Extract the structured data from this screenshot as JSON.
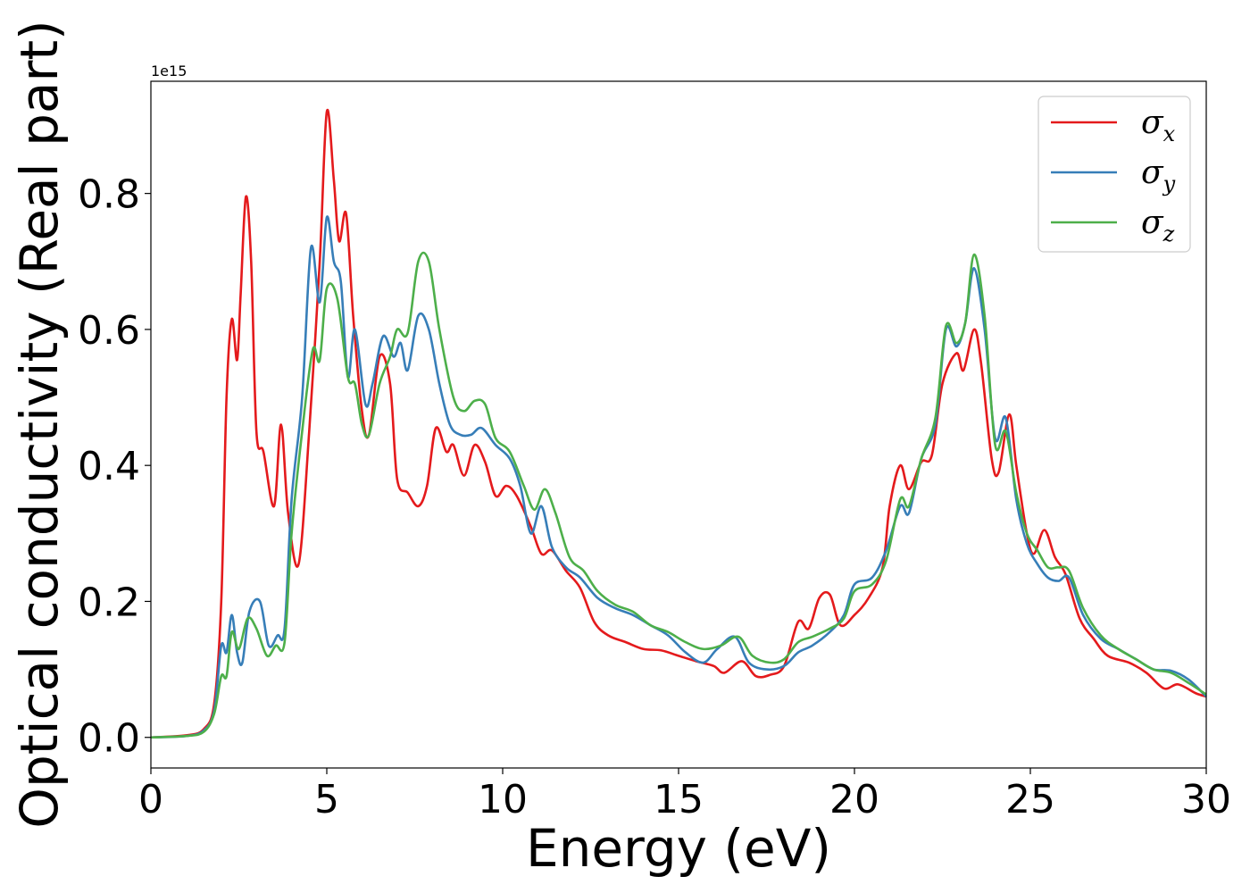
{
  "chart_data": {
    "type": "line",
    "xlabel": "Energy (eV)",
    "ylabel": "Optical conductivity (Real part)",
    "y_offset_text": "1e15",
    "xlim": [
      0,
      30
    ],
    "ylim": [
      -0.045,
      0.965
    ],
    "y_scale": 1000000000000000.0,
    "grid": false,
    "legend_position": "top-right",
    "xticks": [
      {
        "value": 0,
        "label": "0"
      },
      {
        "value": 5,
        "label": "5"
      },
      {
        "value": 10,
        "label": "10"
      },
      {
        "value": 15,
        "label": "15"
      },
      {
        "value": 20,
        "label": "20"
      },
      {
        "value": 25,
        "label": "25"
      },
      {
        "value": 30,
        "label": "30"
      }
    ],
    "yticks": [
      {
        "value": 0.0,
        "label": "0.0"
      },
      {
        "value": 0.2,
        "label": "0.2"
      },
      {
        "value": 0.4,
        "label": "0.4"
      },
      {
        "value": 0.6,
        "label": "0.6"
      },
      {
        "value": 0.8,
        "label": "0.8"
      }
    ],
    "series": [
      {
        "name": "σx",
        "symbol": "σ",
        "subscript": "x",
        "color": "#e41a1c",
        "points": [
          [
            0,
            0
          ],
          [
            1.0,
            0.003
          ],
          [
            1.5,
            0.012
          ],
          [
            1.8,
            0.05
          ],
          [
            2.0,
            0.2
          ],
          [
            2.15,
            0.5
          ],
          [
            2.3,
            0.615
          ],
          [
            2.45,
            0.555
          ],
          [
            2.55,
            0.65
          ],
          [
            2.7,
            0.795
          ],
          [
            2.85,
            0.7
          ],
          [
            3.0,
            0.45
          ],
          [
            3.2,
            0.42
          ],
          [
            3.5,
            0.34
          ],
          [
            3.7,
            0.46
          ],
          [
            3.9,
            0.33
          ],
          [
            4.2,
            0.255
          ],
          [
            4.5,
            0.45
          ],
          [
            4.8,
            0.7
          ],
          [
            5.0,
            0.92
          ],
          [
            5.2,
            0.82
          ],
          [
            5.35,
            0.73
          ],
          [
            5.55,
            0.77
          ],
          [
            5.75,
            0.62
          ],
          [
            6.0,
            0.48
          ],
          [
            6.2,
            0.445
          ],
          [
            6.5,
            0.56
          ],
          [
            6.8,
            0.52
          ],
          [
            7.0,
            0.38
          ],
          [
            7.3,
            0.36
          ],
          [
            7.6,
            0.34
          ],
          [
            7.85,
            0.37
          ],
          [
            8.1,
            0.455
          ],
          [
            8.4,
            0.42
          ],
          [
            8.6,
            0.43
          ],
          [
            8.9,
            0.385
          ],
          [
            9.2,
            0.43
          ],
          [
            9.5,
            0.405
          ],
          [
            9.8,
            0.355
          ],
          [
            10.1,
            0.37
          ],
          [
            10.4,
            0.355
          ],
          [
            10.8,
            0.31
          ],
          [
            11.1,
            0.27
          ],
          [
            11.4,
            0.275
          ],
          [
            11.8,
            0.245
          ],
          [
            12.2,
            0.22
          ],
          [
            12.6,
            0.17
          ],
          [
            13.0,
            0.15
          ],
          [
            13.5,
            0.14
          ],
          [
            14.0,
            0.13
          ],
          [
            14.5,
            0.128
          ],
          [
            15.0,
            0.12
          ],
          [
            15.5,
            0.112
          ],
          [
            16.0,
            0.105
          ],
          [
            16.3,
            0.095
          ],
          [
            16.8,
            0.112
          ],
          [
            17.2,
            0.09
          ],
          [
            17.6,
            0.092
          ],
          [
            18.0,
            0.105
          ],
          [
            18.4,
            0.17
          ],
          [
            18.7,
            0.16
          ],
          [
            19.0,
            0.205
          ],
          [
            19.3,
            0.21
          ],
          [
            19.6,
            0.165
          ],
          [
            20.0,
            0.18
          ],
          [
            20.4,
            0.205
          ],
          [
            20.8,
            0.25
          ],
          [
            21.0,
            0.34
          ],
          [
            21.3,
            0.4
          ],
          [
            21.55,
            0.365
          ],
          [
            21.9,
            0.405
          ],
          [
            22.2,
            0.415
          ],
          [
            22.5,
            0.52
          ],
          [
            22.9,
            0.565
          ],
          [
            23.1,
            0.54
          ],
          [
            23.4,
            0.6
          ],
          [
            23.6,
            0.55
          ],
          [
            23.9,
            0.41
          ],
          [
            24.1,
            0.39
          ],
          [
            24.4,
            0.475
          ],
          [
            24.6,
            0.4
          ],
          [
            24.9,
            0.3
          ],
          [
            25.1,
            0.27
          ],
          [
            25.4,
            0.305
          ],
          [
            25.7,
            0.265
          ],
          [
            26.0,
            0.24
          ],
          [
            26.4,
            0.175
          ],
          [
            26.8,
            0.145
          ],
          [
            27.2,
            0.12
          ],
          [
            27.8,
            0.11
          ],
          [
            28.3,
            0.095
          ],
          [
            28.8,
            0.072
          ],
          [
            29.2,
            0.078
          ],
          [
            29.7,
            0.065
          ],
          [
            30,
            0.06
          ]
        ]
      },
      {
        "name": "σy",
        "symbol": "σ",
        "subscript": "y",
        "color": "#377eb8",
        "points": [
          [
            0,
            0
          ],
          [
            1.0,
            0.002
          ],
          [
            1.5,
            0.01
          ],
          [
            1.8,
            0.04
          ],
          [
            2.0,
            0.135
          ],
          [
            2.15,
            0.125
          ],
          [
            2.3,
            0.18
          ],
          [
            2.45,
            0.125
          ],
          [
            2.6,
            0.11
          ],
          [
            2.8,
            0.185
          ],
          [
            3.1,
            0.2
          ],
          [
            3.35,
            0.135
          ],
          [
            3.6,
            0.15
          ],
          [
            3.8,
            0.16
          ],
          [
            4.0,
            0.35
          ],
          [
            4.3,
            0.5
          ],
          [
            4.55,
            0.72
          ],
          [
            4.8,
            0.64
          ],
          [
            5.0,
            0.765
          ],
          [
            5.2,
            0.7
          ],
          [
            5.4,
            0.67
          ],
          [
            5.6,
            0.53
          ],
          [
            5.8,
            0.6
          ],
          [
            6.1,
            0.49
          ],
          [
            6.3,
            0.52
          ],
          [
            6.6,
            0.59
          ],
          [
            6.9,
            0.56
          ],
          [
            7.1,
            0.58
          ],
          [
            7.3,
            0.54
          ],
          [
            7.6,
            0.62
          ],
          [
            7.9,
            0.6
          ],
          [
            8.2,
            0.52
          ],
          [
            8.5,
            0.46
          ],
          [
            8.8,
            0.445
          ],
          [
            9.1,
            0.445
          ],
          [
            9.4,
            0.455
          ],
          [
            9.8,
            0.43
          ],
          [
            10.2,
            0.41
          ],
          [
            10.5,
            0.37
          ],
          [
            10.8,
            0.3
          ],
          [
            11.1,
            0.34
          ],
          [
            11.4,
            0.28
          ],
          [
            11.8,
            0.25
          ],
          [
            12.2,
            0.235
          ],
          [
            12.7,
            0.205
          ],
          [
            13.2,
            0.19
          ],
          [
            13.7,
            0.18
          ],
          [
            14.2,
            0.165
          ],
          [
            14.7,
            0.15
          ],
          [
            15.2,
            0.125
          ],
          [
            15.7,
            0.11
          ],
          [
            16.1,
            0.13
          ],
          [
            16.6,
            0.148
          ],
          [
            17.0,
            0.11
          ],
          [
            17.5,
            0.1
          ],
          [
            18.0,
            0.105
          ],
          [
            18.4,
            0.125
          ],
          [
            18.8,
            0.135
          ],
          [
            19.3,
            0.155
          ],
          [
            19.7,
            0.18
          ],
          [
            20.0,
            0.225
          ],
          [
            20.5,
            0.235
          ],
          [
            20.9,
            0.275
          ],
          [
            21.3,
            0.34
          ],
          [
            21.55,
            0.33
          ],
          [
            21.9,
            0.41
          ],
          [
            22.3,
            0.46
          ],
          [
            22.6,
            0.6
          ],
          [
            22.9,
            0.575
          ],
          [
            23.15,
            0.61
          ],
          [
            23.4,
            0.69
          ],
          [
            23.7,
            0.6
          ],
          [
            24.0,
            0.44
          ],
          [
            24.3,
            0.47
          ],
          [
            24.6,
            0.35
          ],
          [
            24.9,
            0.285
          ],
          [
            25.2,
            0.255
          ],
          [
            25.5,
            0.235
          ],
          [
            25.8,
            0.23
          ],
          [
            26.1,
            0.235
          ],
          [
            26.5,
            0.18
          ],
          [
            27.0,
            0.145
          ],
          [
            27.5,
            0.13
          ],
          [
            28.0,
            0.115
          ],
          [
            28.5,
            0.1
          ],
          [
            29.0,
            0.098
          ],
          [
            29.5,
            0.085
          ],
          [
            30,
            0.06
          ]
        ]
      },
      {
        "name": "σz",
        "symbol": "σ",
        "subscript": "z",
        "color": "#4daf4a",
        "points": [
          [
            0,
            0
          ],
          [
            1.0,
            0.002
          ],
          [
            1.5,
            0.008
          ],
          [
            1.8,
            0.035
          ],
          [
            2.0,
            0.09
          ],
          [
            2.15,
            0.09
          ],
          [
            2.3,
            0.155
          ],
          [
            2.5,
            0.13
          ],
          [
            2.75,
            0.175
          ],
          [
            3.0,
            0.16
          ],
          [
            3.3,
            0.12
          ],
          [
            3.55,
            0.135
          ],
          [
            3.8,
            0.14
          ],
          [
            4.0,
            0.3
          ],
          [
            4.3,
            0.45
          ],
          [
            4.6,
            0.57
          ],
          [
            4.8,
            0.555
          ],
          [
            5.0,
            0.66
          ],
          [
            5.3,
            0.645
          ],
          [
            5.6,
            0.53
          ],
          [
            5.8,
            0.52
          ],
          [
            6.0,
            0.46
          ],
          [
            6.2,
            0.445
          ],
          [
            6.5,
            0.52
          ],
          [
            6.8,
            0.56
          ],
          [
            7.0,
            0.6
          ],
          [
            7.3,
            0.595
          ],
          [
            7.6,
            0.7
          ],
          [
            7.9,
            0.7
          ],
          [
            8.2,
            0.6
          ],
          [
            8.6,
            0.5
          ],
          [
            8.9,
            0.48
          ],
          [
            9.2,
            0.495
          ],
          [
            9.5,
            0.49
          ],
          [
            9.8,
            0.44
          ],
          [
            10.2,
            0.42
          ],
          [
            10.6,
            0.37
          ],
          [
            10.9,
            0.335
          ],
          [
            11.2,
            0.365
          ],
          [
            11.5,
            0.33
          ],
          [
            11.9,
            0.265
          ],
          [
            12.3,
            0.245
          ],
          [
            12.7,
            0.215
          ],
          [
            13.2,
            0.195
          ],
          [
            13.7,
            0.185
          ],
          [
            14.2,
            0.165
          ],
          [
            14.7,
            0.155
          ],
          [
            15.2,
            0.14
          ],
          [
            15.7,
            0.13
          ],
          [
            16.2,
            0.135
          ],
          [
            16.7,
            0.148
          ],
          [
            17.1,
            0.12
          ],
          [
            17.6,
            0.11
          ],
          [
            18.0,
            0.115
          ],
          [
            18.4,
            0.14
          ],
          [
            18.8,
            0.148
          ],
          [
            19.3,
            0.16
          ],
          [
            19.7,
            0.175
          ],
          [
            20.0,
            0.215
          ],
          [
            20.5,
            0.225
          ],
          [
            20.9,
            0.26
          ],
          [
            21.3,
            0.35
          ],
          [
            21.55,
            0.34
          ],
          [
            21.9,
            0.41
          ],
          [
            22.3,
            0.47
          ],
          [
            22.6,
            0.605
          ],
          [
            22.9,
            0.58
          ],
          [
            23.15,
            0.61
          ],
          [
            23.4,
            0.71
          ],
          [
            23.7,
            0.62
          ],
          [
            24.0,
            0.43
          ],
          [
            24.3,
            0.45
          ],
          [
            24.6,
            0.36
          ],
          [
            24.9,
            0.3
          ],
          [
            25.2,
            0.275
          ],
          [
            25.5,
            0.25
          ],
          [
            25.8,
            0.25
          ],
          [
            26.1,
            0.245
          ],
          [
            26.5,
            0.19
          ],
          [
            27.0,
            0.15
          ],
          [
            27.5,
            0.13
          ],
          [
            28.0,
            0.115
          ],
          [
            28.5,
            0.1
          ],
          [
            29.0,
            0.095
          ],
          [
            29.5,
            0.08
          ],
          [
            30,
            0.063
          ]
        ]
      }
    ]
  }
}
